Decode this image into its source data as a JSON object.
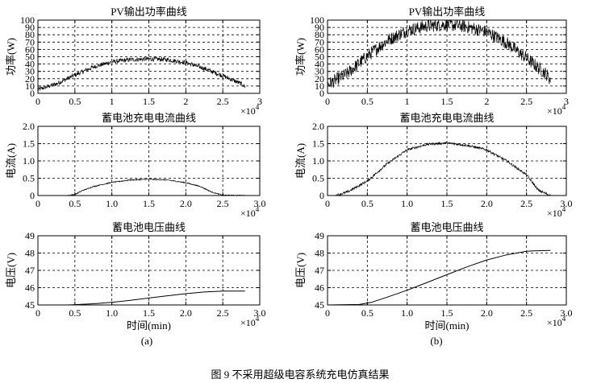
{
  "figure_caption": "图 9   不采用超级电容系统充电仿真结果",
  "columns": [
    {
      "label": "(a)"
    },
    {
      "label": "(b)"
    }
  ],
  "multiplier": {
    "base": "×10",
    "exp": "4"
  },
  "chart_data": [
    {
      "id": "a-pv",
      "type": "line",
      "title": "PV输出功率曲线",
      "xlabel": "",
      "ylabel": "功率(W)",
      "xlim": [
        0,
        3
      ],
      "ylim": [
        0,
        100
      ],
      "xticks": [
        "0",
        "0.5",
        "1",
        "1.5",
        "2",
        "2.5",
        "3"
      ],
      "yticks": [
        "0",
        "10",
        "20",
        "30",
        "40",
        "50",
        "60",
        "70",
        "80",
        "90",
        "100"
      ],
      "x_unit_multiplier": "×10^4",
      "noisy": true,
      "noise_amplitude": 3,
      "series": [
        {
          "x": [
            0,
            0.25,
            0.5,
            0.75,
            1.0,
            1.25,
            1.5,
            1.75,
            2.0,
            2.25,
            2.5,
            2.75,
            2.8
          ],
          "y": [
            5,
            13,
            25,
            36,
            43,
            46,
            47,
            46,
            42,
            34,
            24,
            13,
            9
          ]
        }
      ]
    },
    {
      "id": "b-pv",
      "type": "line",
      "title": "PV输出功率曲线",
      "xlabel": "",
      "ylabel": "功率(W)",
      "xlim": [
        0,
        3
      ],
      "ylim": [
        0,
        100
      ],
      "xticks": [
        "0",
        "0.5",
        "1",
        "1.5",
        "2",
        "2.5",
        "3"
      ],
      "yticks": [
        "0",
        "10",
        "20",
        "30",
        "40",
        "50",
        "60",
        "70",
        "80",
        "90",
        "100"
      ],
      "x_unit_multiplier": "×10^4",
      "noisy": true,
      "noise_amplitude": 9,
      "series": [
        {
          "x": [
            0,
            0.25,
            0.5,
            0.75,
            1.0,
            1.25,
            1.5,
            1.75,
            2.0,
            2.25,
            2.5,
            2.75,
            2.8
          ],
          "y": [
            12,
            27,
            51,
            72,
            86,
            92,
            94,
            91,
            84,
            69,
            48,
            26,
            19
          ]
        }
      ]
    },
    {
      "id": "a-current",
      "type": "line",
      "title": "蓄电池充电电流曲线",
      "xlabel": "",
      "ylabel": "电流(A)",
      "xlim": [
        0,
        3
      ],
      "ylim": [
        0,
        2
      ],
      "xticks": [
        "0",
        "0.5",
        "1.0",
        "1.5",
        "2.0",
        "2.5",
        "3.0"
      ],
      "yticks": [
        "0",
        "0.5",
        "1.0",
        "1.5",
        "2.0"
      ],
      "x_unit_multiplier": "×10^4",
      "noisy": true,
      "noise_amplitude": 0.015,
      "series": [
        {
          "x": [
            0.4,
            0.5,
            0.6,
            0.75,
            1.0,
            1.25,
            1.5,
            1.75,
            2.0,
            2.2,
            2.35,
            2.5,
            2.8
          ],
          "y": [
            0,
            0.03,
            0.14,
            0.26,
            0.38,
            0.45,
            0.47,
            0.45,
            0.37,
            0.26,
            0.1,
            0.01,
            0
          ]
        }
      ]
    },
    {
      "id": "b-current",
      "type": "line",
      "title": "蓄电池充电电流曲线",
      "xlabel": "",
      "ylabel": "电流(A)",
      "xlim": [
        0,
        3
      ],
      "ylim": [
        0,
        2
      ],
      "xticks": [
        "0",
        "0.5",
        "1.0",
        "1.5",
        "2.0",
        "2.5",
        "3.0"
      ],
      "yticks": [
        "0",
        "0.5",
        "1.0",
        "1.5",
        "2.0"
      ],
      "x_unit_multiplier": "×10^4",
      "noisy": true,
      "noise_amplitude": 0.035,
      "series": [
        {
          "x": [
            0.1,
            0.25,
            0.5,
            0.75,
            1.0,
            1.25,
            1.5,
            1.75,
            2.0,
            2.25,
            2.5,
            2.65,
            2.8
          ],
          "y": [
            0,
            0.1,
            0.42,
            0.92,
            1.32,
            1.48,
            1.52,
            1.45,
            1.32,
            1.0,
            0.6,
            0.15,
            0
          ]
        }
      ]
    },
    {
      "id": "a-voltage",
      "type": "line",
      "title": "蓄电池电压曲线",
      "xlabel": "时间(min)",
      "ylabel": "电压(V)",
      "xlim": [
        0,
        3
      ],
      "ylim": [
        45,
        49
      ],
      "xticks": [
        "0",
        "0.5",
        "1.0",
        "1.5",
        "2.0",
        "2.5",
        "3.0"
      ],
      "yticks": [
        "45",
        "46",
        "47",
        "48",
        "49"
      ],
      "x_unit_multiplier": "×10^4",
      "noisy": false,
      "series": [
        {
          "x": [
            0.4,
            0.5,
            0.75,
            1.0,
            1.25,
            1.5,
            1.75,
            2.0,
            2.25,
            2.5,
            2.8
          ],
          "y": [
            45.0,
            45.02,
            45.07,
            45.15,
            45.27,
            45.4,
            45.53,
            45.65,
            45.75,
            45.8,
            45.8
          ]
        }
      ]
    },
    {
      "id": "b-voltage",
      "type": "line",
      "title": "蓄电池电压曲线",
      "xlabel": "时间(min)",
      "ylabel": "电压(V)",
      "xlim": [
        0,
        3
      ],
      "ylim": [
        45,
        49
      ],
      "xticks": [
        "0",
        "0.5",
        "1.0",
        "1.5",
        "2.0",
        "2.5",
        "3.0"
      ],
      "yticks": [
        "45",
        "46",
        "47",
        "48",
        "49"
      ],
      "x_unit_multiplier": "×10^4",
      "noisy": false,
      "series": [
        {
          "x": [
            0.0,
            0.4,
            0.55,
            0.75,
            1.0,
            1.25,
            1.5,
            1.75,
            2.0,
            2.25,
            2.5,
            2.6,
            2.8
          ],
          "y": [
            45.0,
            45.03,
            45.15,
            45.45,
            45.85,
            46.3,
            46.75,
            47.2,
            47.6,
            47.9,
            48.1,
            48.13,
            48.15
          ]
        }
      ]
    }
  ]
}
